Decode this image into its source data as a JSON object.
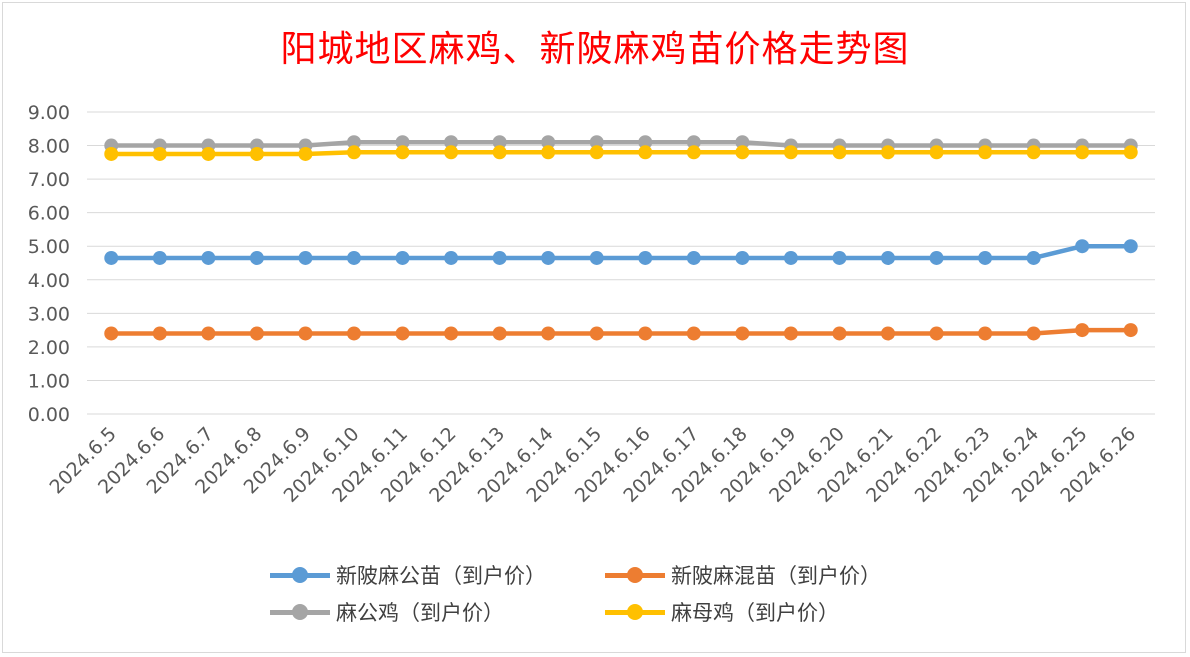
{
  "chart_data": {
    "type": "line",
    "title": "阳城地区麻鸡、新陂麻鸡苗价格走势图",
    "categories": [
      "2024.6.5",
      "2024.6.6",
      "2024.6.7",
      "2024.6.8",
      "2024.6.9",
      "2024.6.10",
      "2024.6.11",
      "2024.6.12",
      "2024.6.13",
      "2024.6.14",
      "2024.6.15",
      "2024.6.16",
      "2024.6.17",
      "2024.6.18",
      "2024.6.19",
      "2024.6.20",
      "2024.6.21",
      "2024.6.22",
      "2024.6.23",
      "2024.6.24",
      "2024.6.25",
      "2024.6.26"
    ],
    "ylim": [
      0,
      9
    ],
    "yticks": [
      "0.00",
      "1.00",
      "2.00",
      "3.00",
      "4.00",
      "5.00",
      "6.00",
      "7.00",
      "8.00",
      "9.00"
    ],
    "grid": true,
    "legend_position": "bottom",
    "series": [
      {
        "name": "新陂麻公苗（到户价）",
        "color": "#5b9bd5",
        "values": [
          4.65,
          4.65,
          4.65,
          4.65,
          4.65,
          4.65,
          4.65,
          4.65,
          4.65,
          4.65,
          4.65,
          4.65,
          4.65,
          4.65,
          4.65,
          4.65,
          4.65,
          4.65,
          4.65,
          4.65,
          5.0,
          5.0
        ]
      },
      {
        "name": "新陂麻混苗（到户价）",
        "color": "#ed7d31",
        "values": [
          2.4,
          2.4,
          2.4,
          2.4,
          2.4,
          2.4,
          2.4,
          2.4,
          2.4,
          2.4,
          2.4,
          2.4,
          2.4,
          2.4,
          2.4,
          2.4,
          2.4,
          2.4,
          2.4,
          2.4,
          2.5,
          2.5
        ]
      },
      {
        "name": "麻公鸡（到户价）",
        "color": "#a5a5a5",
        "values": [
          8.0,
          8.0,
          8.0,
          8.0,
          8.0,
          8.1,
          8.1,
          8.1,
          8.1,
          8.1,
          8.1,
          8.1,
          8.1,
          8.1,
          8.0,
          8.0,
          8.0,
          8.0,
          8.0,
          8.0,
          8.0,
          8.0
        ]
      },
      {
        "name": "麻母鸡（到户价）",
        "color": "#ffc000",
        "values": [
          7.75,
          7.75,
          7.75,
          7.75,
          7.75,
          7.8,
          7.8,
          7.8,
          7.8,
          7.8,
          7.8,
          7.8,
          7.8,
          7.8,
          7.8,
          7.8,
          7.8,
          7.8,
          7.8,
          7.8,
          7.8,
          7.8
        ]
      }
    ]
  }
}
